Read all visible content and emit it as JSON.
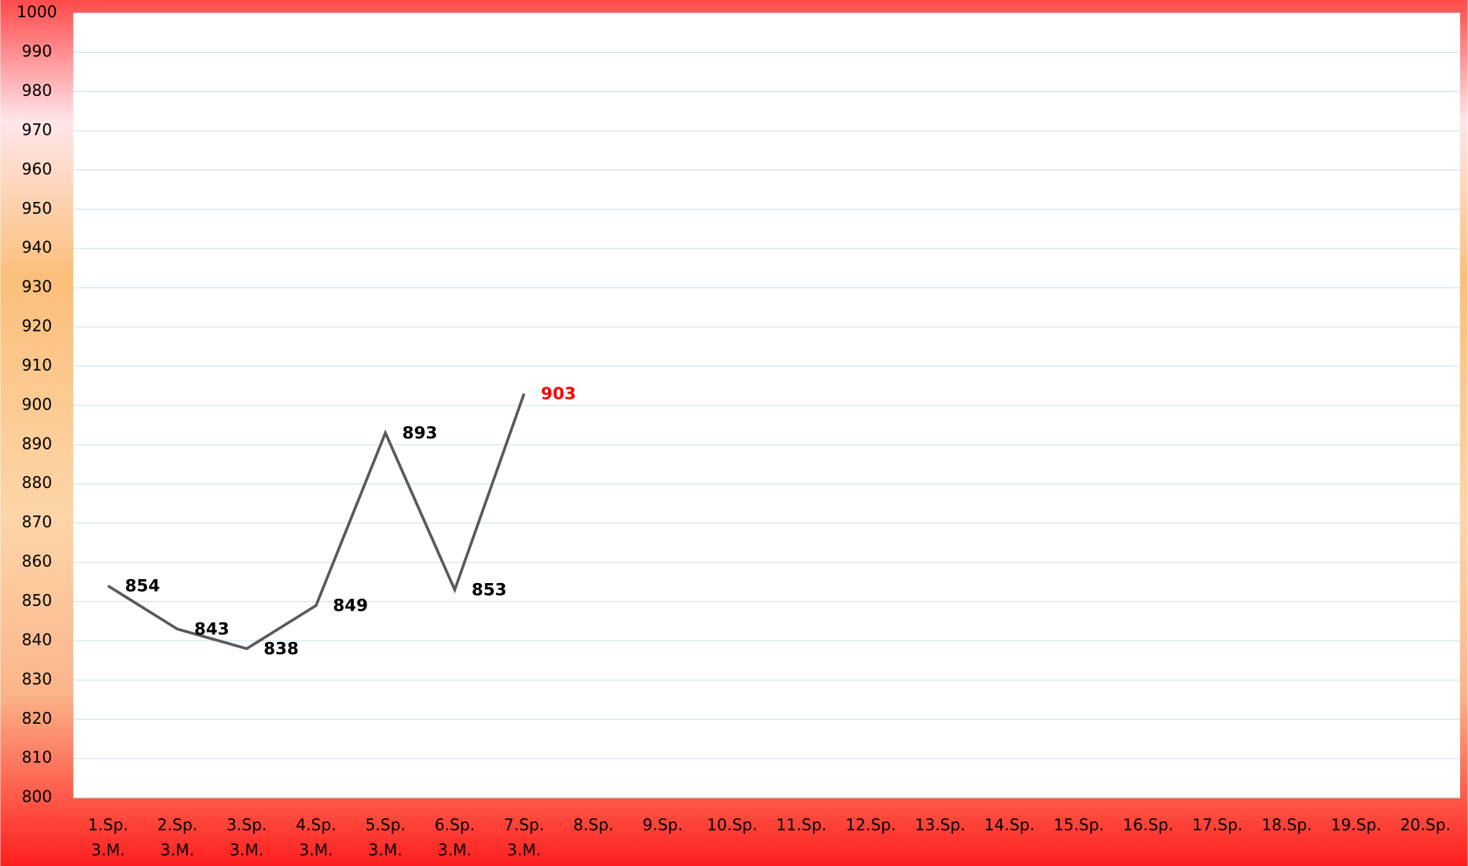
{
  "chart_data": {
    "type": "line",
    "categories": [
      [
        "1.Sp.",
        "3.M."
      ],
      [
        "2.Sp.",
        "3.M."
      ],
      [
        "3.Sp.",
        "3.M."
      ],
      [
        "4.Sp.",
        "3.M."
      ],
      [
        "5.Sp.",
        "3.M."
      ],
      [
        "6.Sp.",
        "3.M."
      ],
      [
        "7.Sp.",
        "3.M."
      ],
      [
        "8.Sp."
      ],
      [
        "9.Sp."
      ],
      [
        "10.Sp."
      ],
      [
        "11.Sp."
      ],
      [
        "12.Sp."
      ],
      [
        "13.Sp."
      ],
      [
        "14.Sp."
      ],
      [
        "15.Sp."
      ],
      [
        "16.Sp."
      ],
      [
        "17.Sp."
      ],
      [
        "18.Sp."
      ],
      [
        "19.Sp."
      ],
      [
        "20.Sp."
      ]
    ],
    "values": [
      854,
      843,
      838,
      849,
      893,
      853,
      903,
      null,
      null,
      null,
      null,
      null,
      null,
      null,
      null,
      null,
      null,
      null,
      null,
      null
    ],
    "color": "#595959",
    "last_label_color": "#ff0000",
    "ylim": [
      800,
      1000
    ],
    "yticks": [
      800,
      810,
      820,
      830,
      840,
      850,
      860,
      870,
      880,
      890,
      900,
      910,
      920,
      930,
      940,
      950,
      960,
      970,
      980,
      990,
      1000
    ],
    "grid": true
  }
}
